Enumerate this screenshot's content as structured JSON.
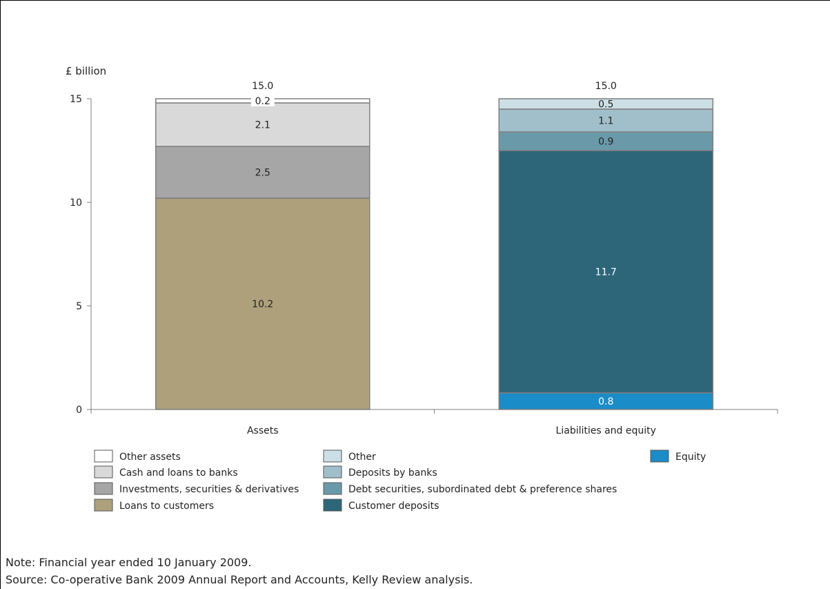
{
  "chart_data": {
    "type": "bar",
    "stacked": true,
    "ylabel": "£ billion",
    "ylim": [
      0,
      15
    ],
    "yticks": [
      0,
      5,
      10,
      15
    ],
    "categories": [
      "Assets",
      "Liabilities and equity"
    ],
    "totals": [
      "15.0",
      "15.0"
    ],
    "stacks": [
      {
        "category": "Assets",
        "segments": [
          {
            "name": "Loans to customers",
            "value": 10.2,
            "label": "10.2",
            "color": "#ada07b",
            "label_color": "#222222"
          },
          {
            "name": "Investments, securities & derivatives",
            "value": 2.5,
            "label": "2.5",
            "color": "#a6a6a6",
            "label_color": "#222222"
          },
          {
            "name": "Cash and loans to banks",
            "value": 2.1,
            "label": "2.1",
            "color": "#d9d9d9",
            "label_color": "#222222"
          },
          {
            "name": "Other assets",
            "value": 0.2,
            "label": "0.2",
            "color": "#ffffff",
            "label_color": "#222222"
          }
        ]
      },
      {
        "category": "Liabilities and equity",
        "segments": [
          {
            "name": "Equity",
            "value": 0.8,
            "label": "0.8",
            "color": "#1a8cc8",
            "label_color": "#ffffff"
          },
          {
            "name": "Customer deposits",
            "value": 11.7,
            "label": "11.7",
            "color": "#2d6678",
            "label_color": "#ffffff"
          },
          {
            "name": "Debt securities, subordinated debt & preference shares",
            "value": 0.9,
            "label": "0.9",
            "color": "#6a9aaa",
            "label_color": "#222222"
          },
          {
            "name": "Deposits by banks",
            "value": 1.1,
            "label": "1.1",
            "color": "#a0bfca",
            "label_color": "#222222"
          },
          {
            "name": "Other",
            "value": 0.5,
            "label": "0.5",
            "color": "#cddfe6",
            "label_color": "#222222"
          }
        ]
      }
    ],
    "legend": {
      "placement": "bottom",
      "columns": [
        [
          {
            "name": "Other assets",
            "color": "#ffffff"
          },
          {
            "name": "Cash and loans to banks",
            "color": "#d9d9d9"
          },
          {
            "name": "Investments, securities & derivatives",
            "color": "#a6a6a6"
          },
          {
            "name": "Loans to customers",
            "color": "#ada07b"
          }
        ],
        [
          {
            "name": "Other",
            "color": "#cddfe6"
          },
          {
            "name": "Deposits by banks",
            "color": "#a0bfca"
          },
          {
            "name": "Debt securities, subordinated debt & preference shares",
            "color": "#6a9aaa"
          },
          {
            "name": "Customer deposits",
            "color": "#2d6678"
          }
        ],
        [
          {
            "name": "Equity",
            "color": "#1a8cc8"
          }
        ]
      ]
    },
    "grid": false
  },
  "note": "Note: Financial year ended 10 January 2009.",
  "source": "Source: Co-operative Bank 2009 Annual Report and Accounts, Kelly Review analysis."
}
